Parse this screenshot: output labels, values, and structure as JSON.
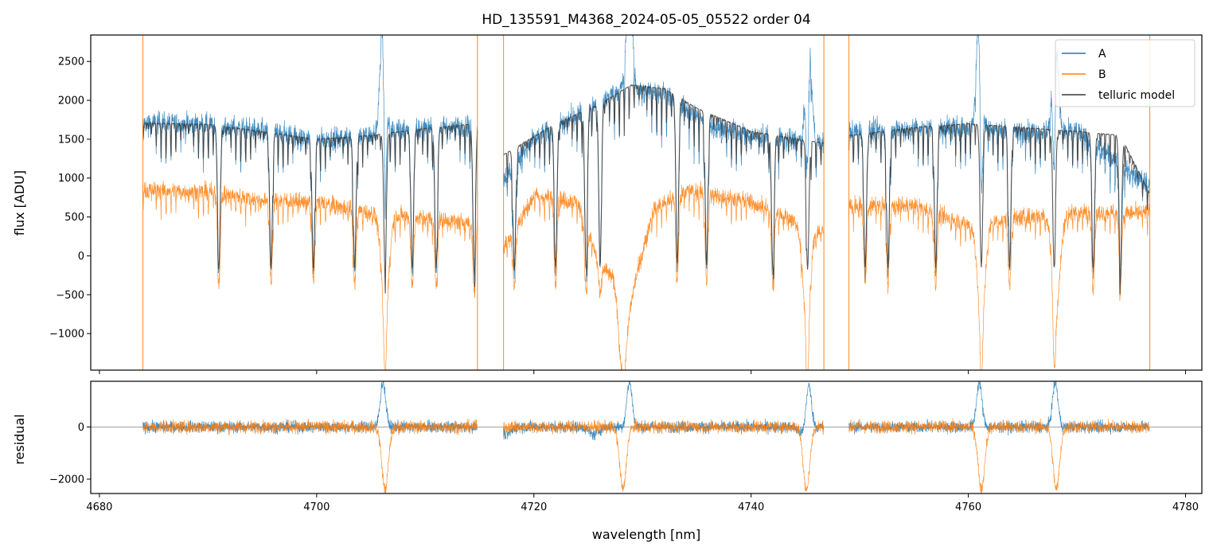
{
  "colors": {
    "A": "#1f77b4",
    "B": "#ff7f0e",
    "telluric": "#3a3a3a",
    "zero_line": "#808080"
  },
  "chart_data": {
    "type": "line",
    "title": "HD_135591_M4368_2024-05-05_05522  order 04",
    "xlabel": "wavelength [nm]",
    "xlim": [
      4679.2,
      4781.5
    ],
    "xticks": [
      4680,
      4700,
      4720,
      4740,
      4760,
      4780
    ],
    "legend_position": "top-right",
    "segments": [
      [
        4684.0,
        4714.8
      ],
      [
        4717.2,
        4746.7
      ],
      [
        4749.0,
        4776.7
      ]
    ],
    "panels": [
      {
        "name": "flux",
        "ylabel": "flux [ADU]",
        "ylim": [
          -1470,
          2840
        ],
        "yticks": [
          -1000,
          -500,
          0,
          500,
          1000,
          1500,
          2000,
          2500
        ],
        "ytick_labels": [
          "−1000",
          "−500",
          "0",
          "500",
          "1000",
          "1500",
          "2000",
          "2500"
        ],
        "series": [
          {
            "name": "A",
            "baseline": [
              [
                4684.0,
                1720
              ],
              [
                4690.0,
                1690
              ],
              [
                4695.0,
                1620
              ],
              [
                4700.0,
                1500
              ],
              [
                4705.0,
                1560
              ],
              [
                4708.0,
                1640
              ],
              [
                4714.8,
                1680
              ],
              [
                4717.2,
                1000
              ],
              [
                4720.0,
                1500
              ],
              [
                4725.0,
                1900
              ],
              [
                4728.0,
                2150
              ],
              [
                4732.0,
                2100
              ],
              [
                4736.0,
                1700
              ],
              [
                4740.0,
                1550
              ],
              [
                4746.7,
                1450
              ],
              [
                4749.0,
                1600
              ],
              [
                4755.0,
                1650
              ],
              [
                4760.0,
                1650
              ],
              [
                4765.0,
                1600
              ],
              [
                4770.0,
                1600
              ],
              [
                4776.7,
                900
              ]
            ]
          },
          {
            "name": "B",
            "baseline": [
              [
                4684.0,
                850
              ],
              [
                4690.0,
                830
              ],
              [
                4695.0,
                720
              ],
              [
                4700.0,
                700
              ],
              [
                4705.0,
                560
              ],
              [
                4708.0,
                520
              ],
              [
                4714.8,
                420
              ],
              [
                4717.2,
                100
              ],
              [
                4720.0,
                780
              ],
              [
                4724.0,
                700
              ],
              [
                4726.0,
                -100
              ],
              [
                4729.0,
                -500
              ],
              [
                4731.0,
                600
              ],
              [
                4734.0,
                850
              ],
              [
                4740.0,
                700
              ],
              [
                4746.7,
                300
              ],
              [
                4749.0,
                650
              ],
              [
                4755.0,
                650
              ],
              [
                4760.0,
                400
              ],
              [
                4765.0,
                500
              ],
              [
                4770.0,
                560
              ],
              [
                4776.7,
                560
              ]
            ]
          },
          {
            "name": "telluric model",
            "baseline": [
              [
                4684.0,
                1710
              ],
              [
                4690.0,
                1690
              ],
              [
                4695.0,
                1600
              ],
              [
                4700.0,
                1500
              ],
              [
                4705.0,
                1550
              ],
              [
                4710.0,
                1640
              ],
              [
                4714.8,
                1700
              ],
              [
                4717.2,
                1300
              ],
              [
                4722.0,
                1700
              ],
              [
                4726.0,
                1950
              ],
              [
                4729.0,
                2200
              ],
              [
                4732.0,
                2150
              ],
              [
                4735.0,
                1900
              ],
              [
                4740.0,
                1600
              ],
              [
                4746.7,
                1450
              ],
              [
                4749.0,
                1550
              ],
              [
                4755.0,
                1650
              ],
              [
                4760.0,
                1700
              ],
              [
                4765.0,
                1650
              ],
              [
                4770.0,
                1600
              ],
              [
                4774.0,
                1550
              ],
              [
                4776.7,
                800
              ]
            ]
          }
        ]
      },
      {
        "name": "residual",
        "ylabel": "residual",
        "ylim": [
          -2550,
          1750
        ],
        "yticks": [
          -2000,
          0
        ],
        "ytick_labels": [
          "−2000",
          "0"
        ],
        "series": [
          {
            "name": "A"
          },
          {
            "name": "B"
          }
        ]
      }
    ],
    "features": {
      "absorption_lines_nm": [
        4691.0,
        4695.8,
        4699.7,
        4703.5,
        4706.3,
        4708.8,
        4711.0,
        4714.5,
        4718.2,
        4722.0,
        4724.8,
        4726.1,
        4733.2,
        4735.9,
        4742.0,
        4745.2,
        4750.5,
        4752.6,
        4757.0,
        4761.2,
        4763.8,
        4767.9,
        4771.5,
        4774.0
      ],
      "emission_spikes_A_nm": [
        4706.1,
        4728.8,
        4745.3,
        4761.0,
        4768.0
      ],
      "residual_dips_B_nm": [
        4706.3,
        4728.2,
        4745.1,
        4761.2,
        4768.1
      ]
    }
  }
}
